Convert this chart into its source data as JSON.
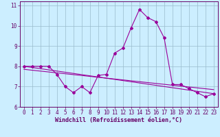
{
  "x_data": [
    0,
    1,
    2,
    3,
    4,
    5,
    6,
    7,
    8,
    9,
    10,
    11,
    12,
    13,
    14,
    15,
    16,
    17,
    18,
    19,
    20,
    21,
    22,
    23
  ],
  "y_windchill": [
    8.0,
    8.0,
    8.0,
    8.0,
    7.6,
    7.0,
    6.7,
    7.0,
    6.7,
    7.55,
    7.6,
    8.65,
    8.9,
    9.9,
    10.8,
    10.4,
    10.2,
    9.4,
    7.1,
    7.1,
    6.9,
    6.7,
    6.5,
    6.65
  ],
  "trend1_x": [
    0,
    23
  ],
  "trend1_y": [
    8.0,
    6.65
  ],
  "trend2_x": [
    0,
    23
  ],
  "trend2_y": [
    7.85,
    6.85
  ],
  "xlim": [
    -0.5,
    23.5
  ],
  "ylim": [
    6.0,
    11.2
  ],
  "yticks": [
    6,
    7,
    8,
    9,
    10,
    11
  ],
  "xticks": [
    0,
    1,
    2,
    3,
    4,
    5,
    6,
    7,
    8,
    9,
    10,
    11,
    12,
    13,
    14,
    15,
    16,
    17,
    18,
    19,
    20,
    21,
    22,
    23
  ],
  "line_color": "#990099",
  "bg_color": "#cceeff",
  "grid_color": "#99bbcc",
  "xlabel": "Windchill (Refroidissement éolien,°C)",
  "tick_fontsize": 5.5,
  "label_fontsize": 6,
  "marker": "D",
  "marker_size": 2.0
}
